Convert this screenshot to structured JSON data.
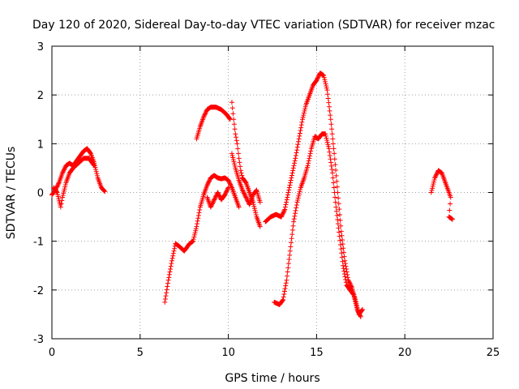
{
  "chart_data": {
    "type": "scatter",
    "title": "Day 120 of 2020, Sidereal Day-to-day VTEC variation (SDTVAR) for receiver mzac",
    "xlabel": "GPS time / hours",
    "ylabel": "SDTVAR / TECUs",
    "xlim": [
      0,
      25
    ],
    "ylim": [
      -3,
      3
    ],
    "xticks": [
      "0",
      "5",
      "10",
      "15",
      "20",
      "25"
    ],
    "yticks": [
      "-3",
      "-2",
      "-1",
      "0",
      "1",
      "2",
      "3"
    ],
    "grid": true,
    "marker": "+",
    "color": "#ff0000",
    "series": [
      {
        "values": [
          [
            0.0,
            -0.05
          ],
          [
            0.2,
            0.05
          ],
          [
            0.4,
            0.2
          ],
          [
            0.6,
            0.4
          ],
          [
            0.8,
            0.55
          ],
          [
            1.0,
            0.6
          ],
          [
            1.2,
            0.55
          ],
          [
            1.4,
            0.65
          ],
          [
            1.6,
            0.75
          ],
          [
            1.8,
            0.85
          ],
          [
            2.0,
            0.9
          ],
          [
            2.2,
            0.8
          ],
          [
            2.4,
            0.6
          ],
          [
            2.6,
            0.3
          ],
          [
            2.8,
            0.1
          ],
          [
            3.0,
            0.02
          ]
        ]
      },
      {
        "values": [
          [
            0.1,
            0.1
          ],
          [
            0.3,
            0.0
          ],
          [
            0.5,
            -0.3
          ],
          [
            0.6,
            -0.1
          ],
          [
            0.8,
            0.2
          ],
          [
            1.0,
            0.4
          ],
          [
            1.2,
            0.5
          ],
          [
            1.5,
            0.6
          ],
          [
            1.8,
            0.7
          ],
          [
            2.1,
            0.7
          ],
          [
            2.4,
            0.55
          ]
        ]
      },
      {
        "values": [
          [
            6.4,
            -2.25
          ],
          [
            6.6,
            -1.8
          ],
          [
            6.8,
            -1.4
          ],
          [
            7.0,
            -1.05
          ],
          [
            7.2,
            -1.1
          ],
          [
            7.5,
            -1.2
          ],
          [
            7.8,
            -1.05
          ],
          [
            8.0,
            -1.0
          ],
          [
            8.2,
            -0.7
          ],
          [
            8.4,
            -0.3
          ],
          [
            8.6,
            -0.05
          ],
          [
            8.8,
            0.15
          ],
          [
            9.0,
            0.3
          ],
          [
            9.2,
            0.35
          ],
          [
            9.4,
            0.3
          ],
          [
            9.6,
            0.28
          ],
          [
            9.8,
            0.3
          ],
          [
            10.0,
            0.25
          ],
          [
            10.2,
            0.1
          ],
          [
            10.4,
            -0.1
          ],
          [
            10.6,
            -0.3
          ]
        ]
      },
      {
        "values": [
          [
            8.8,
            -0.1
          ],
          [
            9.0,
            -0.3
          ],
          [
            9.2,
            -0.15
          ],
          [
            9.4,
            0.0
          ],
          [
            9.6,
            -0.15
          ],
          [
            9.8,
            -0.05
          ],
          [
            10.0,
            0.1
          ]
        ]
      },
      {
        "values": [
          [
            8.2,
            1.1
          ],
          [
            8.4,
            1.35
          ],
          [
            8.6,
            1.55
          ],
          [
            8.8,
            1.7
          ],
          [
            9.0,
            1.75
          ],
          [
            9.3,
            1.75
          ],
          [
            9.6,
            1.7
          ],
          [
            9.9,
            1.6
          ],
          [
            10.1,
            1.5
          ]
        ]
      },
      {
        "values": [
          [
            10.2,
            1.85
          ],
          [
            10.3,
            1.5
          ],
          [
            10.4,
            1.2
          ],
          [
            10.5,
            1.0
          ],
          [
            10.6,
            0.7
          ],
          [
            10.7,
            0.45
          ],
          [
            10.8,
            0.3
          ],
          [
            11.0,
            0.2
          ],
          [
            11.2,
            0.0
          ],
          [
            11.4,
            -0.2
          ],
          [
            11.6,
            -0.5
          ],
          [
            11.8,
            -0.7
          ]
        ]
      },
      {
        "values": [
          [
            10.2,
            0.8
          ],
          [
            10.4,
            0.5
          ],
          [
            10.6,
            0.25
          ],
          [
            10.8,
            0.05
          ],
          [
            11.0,
            -0.1
          ],
          [
            11.2,
            -0.25
          ],
          [
            11.4,
            -0.05
          ],
          [
            11.6,
            0.05
          ],
          [
            11.8,
            -0.2
          ]
        ]
      },
      {
        "values": [
          [
            12.1,
            -0.6
          ],
          [
            12.4,
            -0.5
          ],
          [
            12.7,
            -0.45
          ],
          [
            13.0,
            -0.5
          ],
          [
            13.2,
            -0.35
          ],
          [
            13.4,
            0.0
          ],
          [
            13.6,
            0.35
          ],
          [
            13.8,
            0.7
          ],
          [
            14.0,
            1.1
          ],
          [
            14.2,
            1.5
          ],
          [
            14.4,
            1.8
          ],
          [
            14.6,
            2.0
          ],
          [
            14.8,
            2.2
          ],
          [
            15.0,
            2.3
          ],
          [
            15.2,
            2.45
          ],
          [
            15.4,
            2.4
          ],
          [
            15.6,
            2.1
          ],
          [
            15.8,
            1.5
          ],
          [
            16.0,
            0.8
          ],
          [
            16.2,
            0.0
          ],
          [
            16.4,
            -0.8
          ],
          [
            16.6,
            -1.4
          ],
          [
            16.8,
            -1.8
          ],
          [
            17.0,
            -1.95
          ],
          [
            17.2,
            -2.2
          ],
          [
            17.4,
            -2.5
          ],
          [
            17.6,
            -2.4
          ]
        ]
      },
      {
        "values": [
          [
            12.6,
            -2.25
          ],
          [
            12.9,
            -2.3
          ],
          [
            13.1,
            -2.2
          ],
          [
            13.3,
            -1.8
          ],
          [
            13.5,
            -1.2
          ],
          [
            13.7,
            -0.6
          ],
          [
            13.9,
            -0.2
          ],
          [
            14.1,
            0.1
          ],
          [
            14.3,
            0.3
          ],
          [
            14.5,
            0.55
          ],
          [
            14.7,
            0.9
          ],
          [
            14.9,
            1.15
          ],
          [
            15.1,
            1.1
          ],
          [
            15.3,
            1.2
          ],
          [
            15.5,
            1.2
          ],
          [
            15.7,
            0.9
          ],
          [
            15.9,
            0.4
          ],
          [
            16.1,
            -0.3
          ],
          [
            16.3,
            -0.9
          ],
          [
            16.5,
            -1.5
          ],
          [
            16.7,
            -1.9
          ],
          [
            16.9,
            -2.0
          ],
          [
            17.1,
            -2.1
          ],
          [
            17.3,
            -2.4
          ],
          [
            17.5,
            -2.55
          ]
        ]
      },
      {
        "values": [
          [
            21.5,
            0.0
          ],
          [
            21.7,
            0.3
          ],
          [
            21.9,
            0.45
          ],
          [
            22.1,
            0.4
          ],
          [
            22.3,
            0.2
          ],
          [
            22.5,
            0.0
          ],
          [
            22.6,
            -0.1
          ],
          [
            22.5,
            -0.5
          ],
          [
            22.7,
            -0.55
          ]
        ]
      }
    ]
  }
}
